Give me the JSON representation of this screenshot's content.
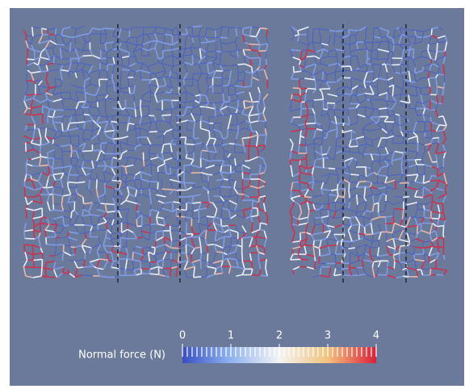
{
  "colorbar": {
    "title": "Normal force (N)",
    "range": [
      0,
      4
    ],
    "ticks": [
      0,
      1,
      2,
      3,
      4
    ]
  }
}
